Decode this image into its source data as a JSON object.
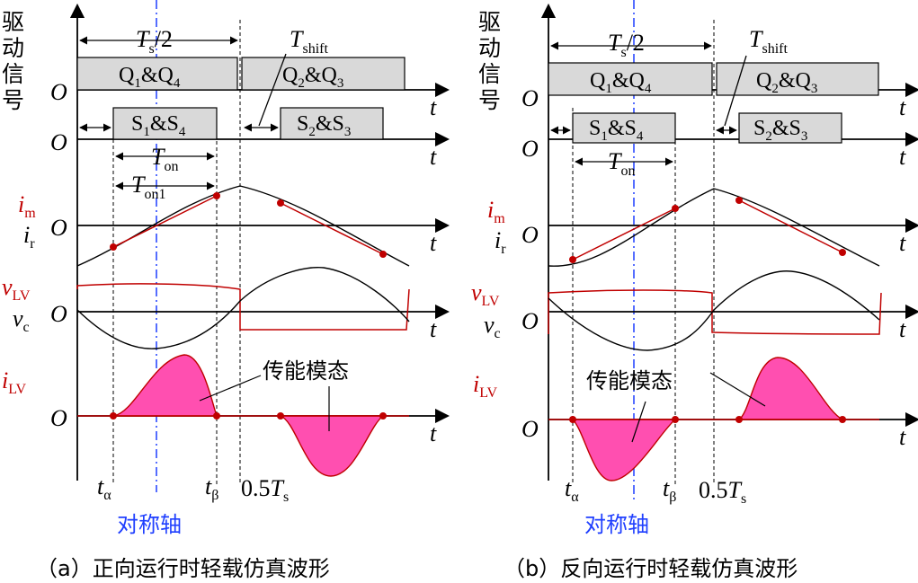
{
  "left": {
    "caption": "（a）正向运行时轻载仿真波形",
    "mode_label": "传能模态",
    "symmetry_label": "对称轴",
    "t_half_base": "T",
    "t_half_sub": "s",
    "t_half_tail": "/2",
    "t_shift_base": "T",
    "t_shift_sub": "shift",
    "t_on_base": "T",
    "t_on_sub": "on",
    "t_on1_base": "T",
    "t_on1_sub": "on1",
    "bar1_left": "Q1&Q4",
    "bar1_right": "Q2&Q3",
    "bar2_left": "S1&S4",
    "bar2_right": "S2&S3",
    "t_alpha_base": "t",
    "t_alpha_sub": "α",
    "t_beta_base": "t",
    "t_beta_sub": "β",
    "half_ts": "0.5T",
    "half_ts_sub": "s"
  },
  "right": {
    "caption": "（b）反向运行时轻载仿真波形",
    "mode_label": "传能模态",
    "symmetry_label": "对称轴",
    "t_half_base": "T",
    "t_half_sub": "s",
    "t_half_tail": "/2",
    "t_shift_base": "T",
    "t_shift_sub": "shift",
    "t_on_base": "T",
    "t_on_sub": "on",
    "bar1_left": "Q1&Q4",
    "bar1_right": "Q2&Q3",
    "bar2_left": "S1&S4",
    "bar2_right": "S2&S3",
    "t_alpha_base": "t",
    "t_alpha_sub": "α",
    "t_beta_base": "t",
    "t_beta_sub": "β",
    "half_ts": "0.5T",
    "half_ts_sub": "s"
  },
  "labels": {
    "drive_signal": [
      "驱",
      "动",
      "信",
      "号"
    ],
    "origin": "O",
    "time": "t",
    "im_base": "i",
    "im_sub": "m",
    "ir_base": "i",
    "ir_sub": "r",
    "vlv_base": "v",
    "vlv_sub": "LV",
    "vc_base": "v",
    "vc_sub": "c",
    "ilv_base": "i",
    "ilv_sub": "LV"
  },
  "colors": {
    "axis": "#000000",
    "red": "#c00000",
    "fill_pink": "#ff4fb0",
    "bar_fill": "#d9d9d9",
    "symmetry_blue": "#1f3fff"
  }
}
